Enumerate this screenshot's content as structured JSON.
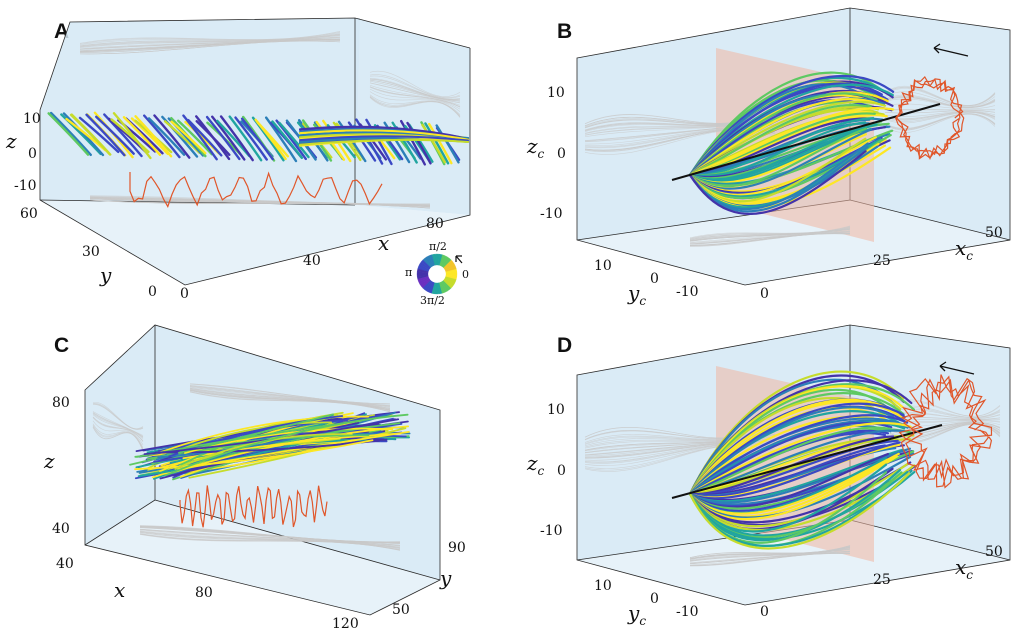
{
  "figure": {
    "panels": [
      {
        "id": "A",
        "letter": "A",
        "xlabel": "x",
        "ylabel": "y",
        "zlabel": "z",
        "xticks": [
          "0",
          "40",
          "80"
        ],
        "yticks": [
          "0",
          "30",
          "60"
        ],
        "zticks": [
          "10",
          "0",
          "-10"
        ]
      },
      {
        "id": "B",
        "letter": "B",
        "xlabel": "x",
        "xsub": "c",
        "ylabel": "y",
        "ysub": "c",
        "zlabel": "z",
        "zsub": "c",
        "xticks": [
          "0",
          "25",
          "50"
        ],
        "yticks": [
          "10",
          "0",
          "-10"
        ],
        "zticks": [
          "10",
          "0",
          "-10"
        ]
      },
      {
        "id": "C",
        "letter": "C",
        "xlabel": "x",
        "ylabel": "y",
        "zlabel": "z",
        "xticks": [
          "40",
          "80",
          "120"
        ],
        "yticks": [
          "50",
          "90"
        ],
        "zticks": [
          "80",
          "40"
        ]
      },
      {
        "id": "D",
        "letter": "D",
        "xlabel": "x",
        "xsub": "c",
        "ylabel": "y",
        "ysub": "c",
        "zlabel": "z",
        "zsub": "c",
        "xticks": [
          "0",
          "25",
          "50"
        ],
        "yticks": [
          "10",
          "0",
          "-10"
        ],
        "zticks": [
          "10",
          "0",
          "-10"
        ]
      }
    ],
    "phase_wheel": {
      "labels": {
        "top": "π/2",
        "left": "π",
        "right": "0",
        "bottom": "3π/2"
      },
      "colors": [
        "#fde725",
        "#f2c42a",
        "#5ec962",
        "#21a5a0",
        "#2c7fb8",
        "#3b49c4",
        "#4433aa",
        "#6a2fc0",
        "#3b49c4",
        "#21a5a0",
        "#5ec962",
        "#c6dc2c",
        "#fde725"
      ]
    },
    "colors": {
      "filament_palette": [
        "#fde725",
        "#c6dc2c",
        "#5ec962",
        "#21a5a0",
        "#2c7fb8",
        "#3b49c4",
        "#4433aa"
      ],
      "trace": "#e0562a",
      "wall": "#d4e8f4",
      "shadow": "#c9c9c9"
    }
  },
  "chart_data": [
    {
      "type": "scatter",
      "panel": "A",
      "title": "",
      "xlabel": "x",
      "ylabel": "y",
      "zlabel": "z",
      "xticks": [
        0,
        40,
        80
      ],
      "yticks": [
        0,
        30,
        60
      ],
      "zticks": [
        -10,
        0,
        10
      ],
      "series": []
    },
    {
      "type": "scatter",
      "panel": "B",
      "title": "",
      "xlabel": "x_c",
      "ylabel": "y_c",
      "zlabel": "z_c",
      "xticks": [
        0,
        25,
        50
      ],
      "yticks": [
        -10,
        0,
        10
      ],
      "zticks": [
        -10,
        0,
        10
      ],
      "series": []
    },
    {
      "type": "scatter",
      "panel": "C",
      "title": "",
      "xlabel": "x",
      "ylabel": "y",
      "zlabel": "z",
      "xticks": [
        40,
        80,
        120
      ],
      "yticks": [
        50,
        90
      ],
      "zticks": [
        40,
        80
      ],
      "series": []
    },
    {
      "type": "scatter",
      "panel": "D",
      "title": "",
      "xlabel": "x_c",
      "ylabel": "y_c",
      "zlabel": "z_c",
      "xticks": [
        0,
        25,
        50
      ],
      "yticks": [
        -10,
        0,
        10
      ],
      "zticks": [
        -10,
        0,
        10
      ],
      "series": []
    }
  ]
}
